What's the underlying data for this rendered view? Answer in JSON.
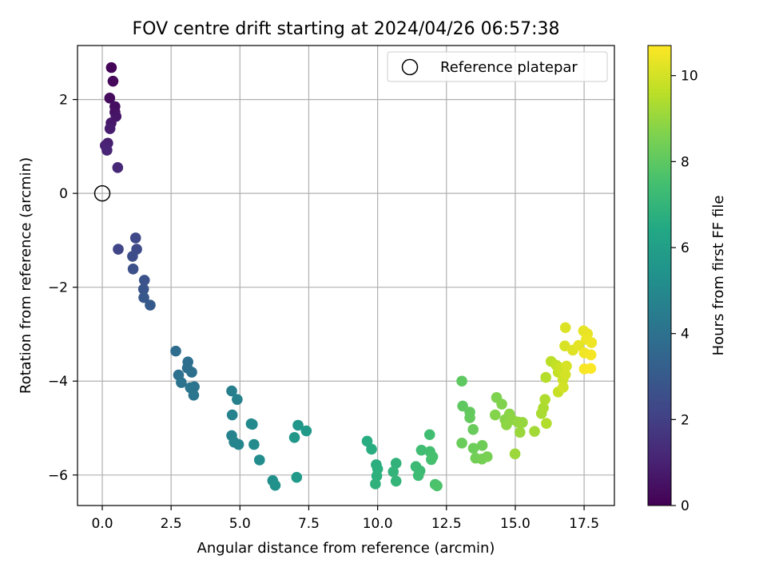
{
  "chart_data": {
    "type": "scatter",
    "title": "FOV centre drift starting at 2024/04/26 06:57:38",
    "xlabel": "Angular distance from reference (arcmin)",
    "ylabel": "Rotation from reference (arcmin)",
    "xlim": [
      -0.9,
      18.6
    ],
    "ylim": [
      -6.65,
      3.15
    ],
    "xticks": [
      0.0,
      2.5,
      5.0,
      7.5,
      10.0,
      12.5,
      15.0,
      17.5
    ],
    "xtick_labels": [
      "0.0",
      "2.5",
      "5.0",
      "7.5",
      "10.0",
      "12.5",
      "15.0",
      "17.5"
    ],
    "yticks": [
      -6,
      -4,
      -2,
      0,
      2
    ],
    "ytick_labels": [
      "−6",
      "−4",
      "−2",
      "0",
      "2"
    ],
    "grid": true,
    "legend": {
      "placement": "top-right",
      "entries": [
        "Reference platepar"
      ]
    },
    "reference_point": {
      "x": 0.0,
      "y": 0.0
    },
    "colorbar": {
      "label": "Hours from first FF file",
      "colormap": "viridis",
      "range": [
        0,
        10.7
      ],
      "ticks": [
        0,
        2,
        4,
        6,
        8,
        10
      ],
      "tick_labels": [
        "0",
        "2",
        "4",
        "6",
        "8",
        "10"
      ]
    },
    "series": [
      {
        "points": [
          {
            "x": 0.33,
            "y": 2.68,
            "c": 0.1
          },
          {
            "x": 0.39,
            "y": 2.39,
            "c": 0.2
          },
          {
            "x": 0.27,
            "y": 2.03,
            "c": 0.3
          },
          {
            "x": 0.46,
            "y": 1.85,
            "c": 0.4
          },
          {
            "x": 0.46,
            "y": 1.73,
            "c": 0.5
          },
          {
            "x": 0.5,
            "y": 1.64,
            "c": 0.6
          },
          {
            "x": 0.32,
            "y": 1.5,
            "c": 0.7
          },
          {
            "x": 0.28,
            "y": 1.38,
            "c": 0.8
          },
          {
            "x": 0.2,
            "y": 1.07,
            "c": 0.9
          },
          {
            "x": 0.11,
            "y": 1.02,
            "c": 1.0
          },
          {
            "x": 0.17,
            "y": 0.92,
            "c": 1.1
          },
          {
            "x": 0.56,
            "y": 0.55,
            "c": 1.2
          },
          {
            "x": 0.58,
            "y": -1.19,
            "c": 2.2
          },
          {
            "x": 1.21,
            "y": -0.95,
            "c": 2.3
          },
          {
            "x": 1.25,
            "y": -1.19,
            "c": 2.4
          },
          {
            "x": 1.1,
            "y": -1.34,
            "c": 2.5
          },
          {
            "x": 1.12,
            "y": -1.61,
            "c": 2.6
          },
          {
            "x": 1.53,
            "y": -1.85,
            "c": 2.7
          },
          {
            "x": 1.5,
            "y": -2.04,
            "c": 2.8
          },
          {
            "x": 1.51,
            "y": -2.22,
            "c": 2.9
          },
          {
            "x": 1.74,
            "y": -2.38,
            "c": 3.0
          },
          {
            "x": 2.67,
            "y": -3.36,
            "c": 3.8
          },
          {
            "x": 3.11,
            "y": -3.59,
            "c": 3.85
          },
          {
            "x": 3.09,
            "y": -3.72,
            "c": 3.9
          },
          {
            "x": 3.25,
            "y": -3.81,
            "c": 3.95
          },
          {
            "x": 2.77,
            "y": -3.87,
            "c": 4.0
          },
          {
            "x": 2.87,
            "y": -4.03,
            "c": 4.05
          },
          {
            "x": 3.34,
            "y": -4.12,
            "c": 4.1
          },
          {
            "x": 3.2,
            "y": -4.14,
            "c": 4.15
          },
          {
            "x": 3.32,
            "y": -4.3,
            "c": 4.2
          },
          {
            "x": 4.7,
            "y": -4.21,
            "c": 4.6
          },
          {
            "x": 4.9,
            "y": -4.39,
            "c": 4.65
          },
          {
            "x": 4.72,
            "y": -4.72,
            "c": 4.7
          },
          {
            "x": 4.7,
            "y": -5.16,
            "c": 4.75
          },
          {
            "x": 4.79,
            "y": -5.3,
            "c": 4.8
          },
          {
            "x": 4.95,
            "y": -5.35,
            "c": 4.85
          },
          {
            "x": 5.41,
            "y": -4.91,
            "c": 5.0
          },
          {
            "x": 5.45,
            "y": -4.92,
            "c": 5.05
          },
          {
            "x": 5.51,
            "y": -5.35,
            "c": 5.1
          },
          {
            "x": 5.71,
            "y": -5.68,
            "c": 5.15
          },
          {
            "x": 6.19,
            "y": -6.12,
            "c": 5.3
          },
          {
            "x": 6.28,
            "y": -6.22,
            "c": 5.35
          },
          {
            "x": 7.11,
            "y": -4.94,
            "c": 5.6
          },
          {
            "x": 6.98,
            "y": -5.2,
            "c": 5.65
          },
          {
            "x": 7.41,
            "y": -5.06,
            "c": 5.7
          },
          {
            "x": 7.06,
            "y": -6.05,
            "c": 5.75
          },
          {
            "x": 9.62,
            "y": -5.28,
            "c": 6.6
          },
          {
            "x": 9.78,
            "y": -5.45,
            "c": 6.65
          },
          {
            "x": 9.95,
            "y": -5.78,
            "c": 6.7
          },
          {
            "x": 10.0,
            "y": -5.87,
            "c": 6.75
          },
          {
            "x": 9.97,
            "y": -6.02,
            "c": 6.8
          },
          {
            "x": 9.92,
            "y": -6.19,
            "c": 6.85
          },
          {
            "x": 10.67,
            "y": -5.75,
            "c": 6.9
          },
          {
            "x": 10.57,
            "y": -5.93,
            "c": 6.95
          },
          {
            "x": 10.67,
            "y": -6.13,
            "c": 7.0
          },
          {
            "x": 11.39,
            "y": -5.82,
            "c": 7.2
          },
          {
            "x": 11.54,
            "y": -5.91,
            "c": 7.25
          },
          {
            "x": 11.48,
            "y": -6.01,
            "c": 7.3
          },
          {
            "x": 11.59,
            "y": -5.47,
            "c": 7.35
          },
          {
            "x": 11.89,
            "y": -5.14,
            "c": 7.4
          },
          {
            "x": 11.9,
            "y": -5.5,
            "c": 7.45
          },
          {
            "x": 11.95,
            "y": -5.67,
            "c": 7.5
          },
          {
            "x": 12.0,
            "y": -5.61,
            "c": 7.55
          },
          {
            "x": 12.09,
            "y": -6.2,
            "c": 7.6
          },
          {
            "x": 12.16,
            "y": -6.23,
            "c": 7.65
          },
          {
            "x": 13.06,
            "y": -4.0,
            "c": 8.0
          },
          {
            "x": 13.09,
            "y": -4.53,
            "c": 8.05
          },
          {
            "x": 13.35,
            "y": -4.66,
            "c": 8.1
          },
          {
            "x": 13.35,
            "y": -4.78,
            "c": 8.15
          },
          {
            "x": 13.47,
            "y": -5.03,
            "c": 8.2
          },
          {
            "x": 13.06,
            "y": -5.32,
            "c": 8.25
          },
          {
            "x": 13.48,
            "y": -5.43,
            "c": 8.3
          },
          {
            "x": 13.8,
            "y": -5.37,
            "c": 8.35
          },
          {
            "x": 13.56,
            "y": -5.64,
            "c": 8.4
          },
          {
            "x": 13.79,
            "y": -5.66,
            "c": 8.45
          },
          {
            "x": 13.98,
            "y": -5.61,
            "c": 8.5
          },
          {
            "x": 14.32,
            "y": -4.35,
            "c": 8.6
          },
          {
            "x": 14.51,
            "y": -4.49,
            "c": 8.65
          },
          {
            "x": 14.27,
            "y": -4.72,
            "c": 8.7
          },
          {
            "x": 14.63,
            "y": -4.82,
            "c": 8.75
          },
          {
            "x": 14.79,
            "y": -4.7,
            "c": 8.8
          },
          {
            "x": 14.68,
            "y": -4.93,
            "c": 8.85
          },
          {
            "x": 14.89,
            "y": -4.82,
            "c": 8.9
          },
          {
            "x": 15.09,
            "y": -4.87,
            "c": 8.95
          },
          {
            "x": 15.26,
            "y": -4.88,
            "c": 9.0
          },
          {
            "x": 15.17,
            "y": -5.09,
            "c": 9.05
          },
          {
            "x": 14.99,
            "y": -5.55,
            "c": 9.1
          },
          {
            "x": 15.7,
            "y": -5.07,
            "c": 9.2
          },
          {
            "x": 15.95,
            "y": -4.69,
            "c": 9.3
          },
          {
            "x": 16.02,
            "y": -4.57,
            "c": 9.35
          },
          {
            "x": 16.08,
            "y": -4.39,
            "c": 9.4
          },
          {
            "x": 16.13,
            "y": -4.9,
            "c": 9.45
          },
          {
            "x": 16.11,
            "y": -3.92,
            "c": 9.5
          },
          {
            "x": 16.3,
            "y": -3.58,
            "c": 9.6
          },
          {
            "x": 16.49,
            "y": -3.66,
            "c": 9.7
          },
          {
            "x": 16.56,
            "y": -3.81,
            "c": 9.75
          },
          {
            "x": 16.56,
            "y": -4.23,
            "c": 9.8
          },
          {
            "x": 16.64,
            "y": -3.72,
            "c": 9.85
          },
          {
            "x": 16.73,
            "y": -3.97,
            "c": 9.9
          },
          {
            "x": 16.74,
            "y": -4.13,
            "c": 9.95
          },
          {
            "x": 16.82,
            "y": -3.86,
            "c": 10.0
          },
          {
            "x": 16.86,
            "y": -3.68,
            "c": 10.05
          },
          {
            "x": 16.8,
            "y": -3.25,
            "c": 10.1
          },
          {
            "x": 16.82,
            "y": -2.86,
            "c": 10.15
          },
          {
            "x": 17.09,
            "y": -3.34,
            "c": 10.2
          },
          {
            "x": 17.3,
            "y": -3.24,
            "c": 10.25
          },
          {
            "x": 17.48,
            "y": -2.93,
            "c": 10.3
          },
          {
            "x": 17.62,
            "y": -2.99,
            "c": 10.35
          },
          {
            "x": 17.58,
            "y": -3.11,
            "c": 10.4
          },
          {
            "x": 17.77,
            "y": -3.18,
            "c": 10.45
          },
          {
            "x": 17.51,
            "y": -3.4,
            "c": 10.5
          },
          {
            "x": 17.75,
            "y": -3.44,
            "c": 10.55
          },
          {
            "x": 17.51,
            "y": -3.74,
            "c": 10.6
          },
          {
            "x": 17.74,
            "y": -3.73,
            "c": 10.65
          }
        ]
      }
    ]
  }
}
